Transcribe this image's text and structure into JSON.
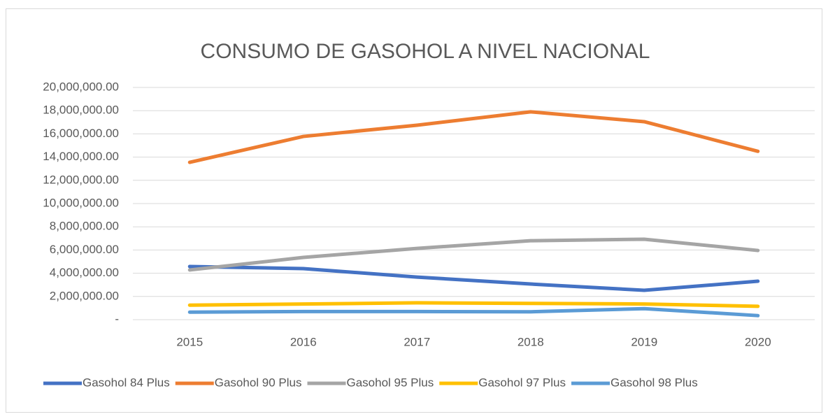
{
  "chart_data": {
    "type": "line",
    "title": "CONSUMO DE GASOHOL A NIVEL NACIONAL",
    "categories": [
      "2015",
      "2016",
      "2017",
      "2018",
      "2019",
      "2020"
    ],
    "series": [
      {
        "name": "Gasohol 84 Plus",
        "color": "#4472c4",
        "values": [
          4580000,
          4400000,
          3670000,
          3070000,
          2530000,
          3310000
        ]
      },
      {
        "name": "Gasohol 90 Plus",
        "color": "#ed7d31",
        "values": [
          13550000,
          15780000,
          16750000,
          17900000,
          17050000,
          14500000
        ]
      },
      {
        "name": "Gasohol 95 Plus",
        "color": "#a5a5a5",
        "values": [
          4280000,
          5360000,
          6140000,
          6800000,
          6930000,
          5960000
        ]
      },
      {
        "name": "Gasohol 97 Plus",
        "color": "#ffc000",
        "values": [
          1250000,
          1350000,
          1450000,
          1400000,
          1350000,
          1150000
        ]
      },
      {
        "name": "Gasohol 98 Plus",
        "color": "#5b9bd5",
        "values": [
          650000,
          700000,
          700000,
          680000,
          950000,
          350000
        ]
      }
    ],
    "ylim": [
      0,
      20000000
    ],
    "yticks": [
      {
        "value": 0,
        "label": "-"
      },
      {
        "value": 2000000,
        "label": "2,000,000.00"
      },
      {
        "value": 4000000,
        "label": "4,000,000.00"
      },
      {
        "value": 6000000,
        "label": "6,000,000.00"
      },
      {
        "value": 8000000,
        "label": "8,000,000.00"
      },
      {
        "value": 10000000,
        "label": "10,000,000.00"
      },
      {
        "value": 12000000,
        "label": "12,000,000.00"
      },
      {
        "value": 14000000,
        "label": "14,000,000.00"
      },
      {
        "value": 16000000,
        "label": "16,000,000.00"
      },
      {
        "value": 18000000,
        "label": "18,000,000.00"
      },
      {
        "value": 20000000,
        "label": "20,000,000.00"
      }
    ],
    "grid": true,
    "legend": "bottom"
  }
}
